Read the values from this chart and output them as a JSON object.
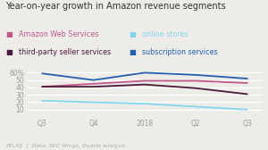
{
  "title": "Year-on-year growth in Amazon revenue segments",
  "x_labels": [
    "Q3",
    "Q4",
    "2018",
    "Q2",
    "Q3"
  ],
  "series": [
    {
      "name": "Amazon Web Services",
      "values": [
        41,
        45,
        49,
        49,
        46
      ],
      "color": "#c0588a"
    },
    {
      "name": "online stores",
      "values": [
        22,
        20,
        18,
        14,
        10
      ],
      "color": "#85d4ef"
    },
    {
      "name": "third-party seller services",
      "values": [
        41,
        41,
        44,
        39,
        31
      ],
      "color": "#4a1a3a"
    },
    {
      "name": "subscription services",
      "values": [
        59,
        50,
        60,
        57,
        52
      ],
      "color": "#2060b0"
    }
  ],
  "ylim": [
    0,
    65
  ],
  "yticks": [
    0,
    10,
    20,
    30,
    40,
    50,
    60
  ],
  "yticklabels": [
    "",
    "10",
    "20",
    "30",
    "40",
    "50",
    "60%"
  ],
  "bg_color": "#eeece8",
  "grid_color": "#ffffff",
  "title_color": "#333333",
  "tick_color": "#999999",
  "footer": "ATLAS  |  Data: SEC filings, Quartz analysis",
  "title_fontsize": 7.0,
  "legend_fontsize": 5.8,
  "tick_fontsize": 5.5,
  "footer_fontsize": 4.5
}
